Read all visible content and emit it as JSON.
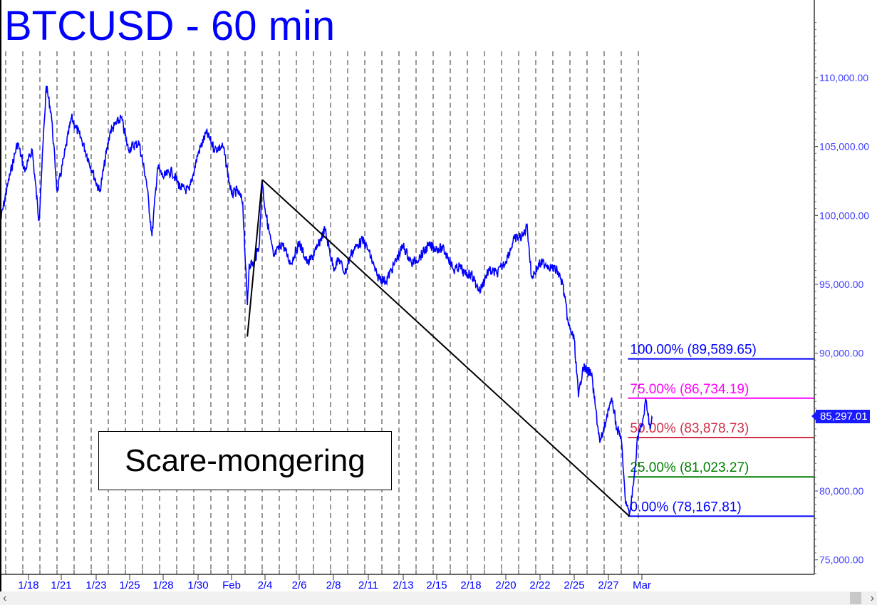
{
  "header": {
    "title": "BTCUSD - 60 min"
  },
  "annotation": {
    "text": "Scare-mongering"
  },
  "price_tag": {
    "value": "85,297.01",
    "color": "#1a1aff"
  },
  "scrollbar": {
    "left_icon": "chevron-left-icon",
    "right_icon": "chevron-right-icon",
    "left": "‹",
    "right": "›"
  },
  "chart_data": {
    "type": "line",
    "title": "BTCUSD - 60 min",
    "xlabel": "",
    "ylabel": "",
    "ylim": [
      73500,
      115500
    ],
    "grid": "vertical dashed lines",
    "y_ticks": [
      "110,000.00",
      "105,000.00",
      "100,000.00",
      "95,000.00",
      "90,000.00",
      "80,000.00",
      "75,000.00"
    ],
    "y_tick_values": [
      110000,
      105000,
      100000,
      95000,
      90000,
      80000,
      75000
    ],
    "x_ticks": [
      {
        "label": "1/18",
        "date": "2025-01-18"
      },
      {
        "label": "1/21",
        "date": "2025-01-21"
      },
      {
        "label": "1/23",
        "date": "2025-01-23"
      },
      {
        "label": "1/25",
        "date": "2025-01-25"
      },
      {
        "label": "1/28",
        "date": "2025-01-28"
      },
      {
        "label": "1/30",
        "date": "2025-01-30"
      },
      {
        "label": "Feb",
        "date": "2025-02-01"
      },
      {
        "label": "2/4",
        "date": "2025-02-04"
      },
      {
        "label": "2/6",
        "date": "2025-02-06"
      },
      {
        "label": "2/8",
        "date": "2025-02-08"
      },
      {
        "label": "2/11",
        "date": "2025-02-11"
      },
      {
        "label": "2/13",
        "date": "2025-02-13"
      },
      {
        "label": "2/15",
        "date": "2025-02-15"
      },
      {
        "label": "2/18",
        "date": "2025-02-18"
      },
      {
        "label": "2/20",
        "date": "2025-02-20"
      },
      {
        "label": "2/22",
        "date": "2025-02-22"
      },
      {
        "label": "2/25",
        "date": "2025-02-25"
      },
      {
        "label": "2/27",
        "date": "2025-02-27"
      },
      {
        "label": "Mar",
        "date": "2025-03-01"
      }
    ],
    "series": [
      {
        "color": "#0000ff",
        "points": [
          [
            "2025-01-15T10",
            99500
          ],
          [
            "2025-01-16T02",
            102200
          ],
          [
            "2025-01-17T00",
            105300
          ],
          [
            "2025-01-17T16",
            103200
          ],
          [
            "2025-01-18T08",
            104800
          ],
          [
            "2025-01-18T23",
            99600
          ],
          [
            "2025-01-19T15",
            109400
          ],
          [
            "2025-01-20T02",
            107400
          ],
          [
            "2025-01-20T15",
            101700
          ],
          [
            "2025-01-21T04",
            104300
          ],
          [
            "2025-01-21T14",
            107100
          ],
          [
            "2025-01-22T04",
            105500
          ],
          [
            "2025-01-22T19",
            103200
          ],
          [
            "2025-01-23T05",
            101700
          ],
          [
            "2025-01-23T20",
            106100
          ],
          [
            "2025-01-24T12",
            107100
          ],
          [
            "2025-01-24T22",
            104800
          ],
          [
            "2025-01-25T20",
            105300
          ],
          [
            "2025-01-26T12",
            102500
          ],
          [
            "2025-01-27T00",
            98500
          ],
          [
            "2025-01-27T12",
            103500
          ],
          [
            "2025-01-28T00",
            102800
          ],
          [
            "2025-01-28T12",
            103200
          ],
          [
            "2025-01-29T00",
            102000
          ],
          [
            "2025-01-29T12",
            101800
          ],
          [
            "2025-01-30T00",
            104500
          ],
          [
            "2025-01-30T12",
            106000
          ],
          [
            "2025-01-31T00",
            104800
          ],
          [
            "2025-01-31T12",
            105000
          ],
          [
            "2025-02-01T00",
            101500
          ],
          [
            "2025-02-01T12",
            101800
          ],
          [
            "2025-02-02T00",
            101000
          ],
          [
            "2025-02-02T10",
            93500
          ],
          [
            "2025-02-02T14",
            96500
          ],
          [
            "2025-02-03T00",
            96500
          ],
          [
            "2025-02-03T12",
            98000
          ],
          [
            "2025-02-03T18",
            102500
          ],
          [
            "2025-02-04T00",
            100500
          ],
          [
            "2025-02-04T12",
            97000
          ],
          [
            "2025-02-05T00",
            98000
          ],
          [
            "2025-02-05T12",
            96500
          ],
          [
            "2025-02-06T00",
            98000
          ],
          [
            "2025-02-06T12",
            96500
          ],
          [
            "2025-02-07T00",
            97500
          ],
          [
            "2025-02-07T12",
            99000
          ],
          [
            "2025-02-08T00",
            96200
          ],
          [
            "2025-02-08T12",
            96800
          ],
          [
            "2025-02-09T00",
            95800
          ],
          [
            "2025-02-09T12",
            97200
          ],
          [
            "2025-02-10T00",
            97800
          ],
          [
            "2025-02-10T12",
            98200
          ],
          [
            "2025-02-11T00",
            97500
          ],
          [
            "2025-02-11T12",
            95600
          ],
          [
            "2025-02-12T00",
            95200
          ],
          [
            "2025-02-12T12",
            96500
          ],
          [
            "2025-02-13T00",
            97800
          ],
          [
            "2025-02-13T12",
            96500
          ],
          [
            "2025-02-14T00",
            97000
          ],
          [
            "2025-02-14T12",
            97800
          ],
          [
            "2025-02-15T00",
            97600
          ],
          [
            "2025-02-15T12",
            97600
          ],
          [
            "2025-02-16T00",
            97000
          ],
          [
            "2025-02-16T12",
            96000
          ],
          [
            "2025-02-17T00",
            96300
          ],
          [
            "2025-02-17T12",
            95700
          ],
          [
            "2025-02-18T00",
            95800
          ],
          [
            "2025-02-18T12",
            94500
          ],
          [
            "2025-02-19T00",
            96000
          ],
          [
            "2025-02-19T12",
            95800
          ],
          [
            "2025-02-20T00",
            96700
          ],
          [
            "2025-02-20T12",
            98300
          ],
          [
            "2025-02-21T00",
            98500
          ],
          [
            "2025-02-21T06",
            99300
          ],
          [
            "2025-02-21T12",
            95500
          ],
          [
            "2025-02-22T00",
            96500
          ],
          [
            "2025-02-22T12",
            96500
          ],
          [
            "2025-02-23T00",
            96200
          ],
          [
            "2025-02-23T12",
            96000
          ],
          [
            "2025-02-24T00",
            95000
          ],
          [
            "2025-02-24T12",
            92000
          ],
          [
            "2025-02-25T00",
            91000
          ],
          [
            "2025-02-25T06",
            86800
          ],
          [
            "2025-02-25T12",
            89000
          ],
          [
            "2025-02-26T00",
            88500
          ],
          [
            "2025-02-26T06",
            86000
          ],
          [
            "2025-02-26T12",
            83500
          ],
          [
            "2025-02-26T18",
            84500
          ],
          [
            "2025-02-27T00",
            86000
          ],
          [
            "2025-02-27T06",
            86500
          ],
          [
            "2025-02-27T12",
            84500
          ],
          [
            "2025-02-27T18",
            84000
          ],
          [
            "2025-02-28T00",
            79500
          ],
          [
            "2025-02-28T06",
            78200
          ],
          [
            "2025-02-28T12",
            80500
          ],
          [
            "2025-02-28T18",
            84000
          ],
          [
            "2025-03-01T00",
            84700
          ],
          [
            "2025-03-01T06",
            86600
          ],
          [
            "2025-03-01T12",
            84500
          ],
          [
            "2025-03-01T15",
            85297.01
          ]
        ]
      }
    ],
    "trendlines": [
      {
        "color": "#000000",
        "points": [
          [
            "2025-02-02T10",
            91200
          ],
          [
            "2025-02-03T18",
            102600
          ]
        ]
      },
      {
        "color": "#000000",
        "points": [
          [
            "2025-02-03T18",
            102600
          ],
          [
            "2025-02-28T06",
            78167.81
          ]
        ]
      }
    ],
    "fib_levels": [
      {
        "label": "100.00% (89,589.65)",
        "value": 89589.65,
        "color": "#0000ff"
      },
      {
        "label": "75.00% (86,734.19)",
        "value": 86734.19,
        "color": "#ff00ff"
      },
      {
        "label": "50.00% (83,878.73)",
        "value": 83878.73,
        "color": "#d0304a"
      },
      {
        "label": "25.00% (81,023.27)",
        "value": 81023.27,
        "color": "#008000"
      },
      {
        "label": "0.00% (78,167.81)",
        "value": 78167.81,
        "color": "#0000ff"
      }
    ],
    "fib_start": "2025-02-28T06"
  }
}
